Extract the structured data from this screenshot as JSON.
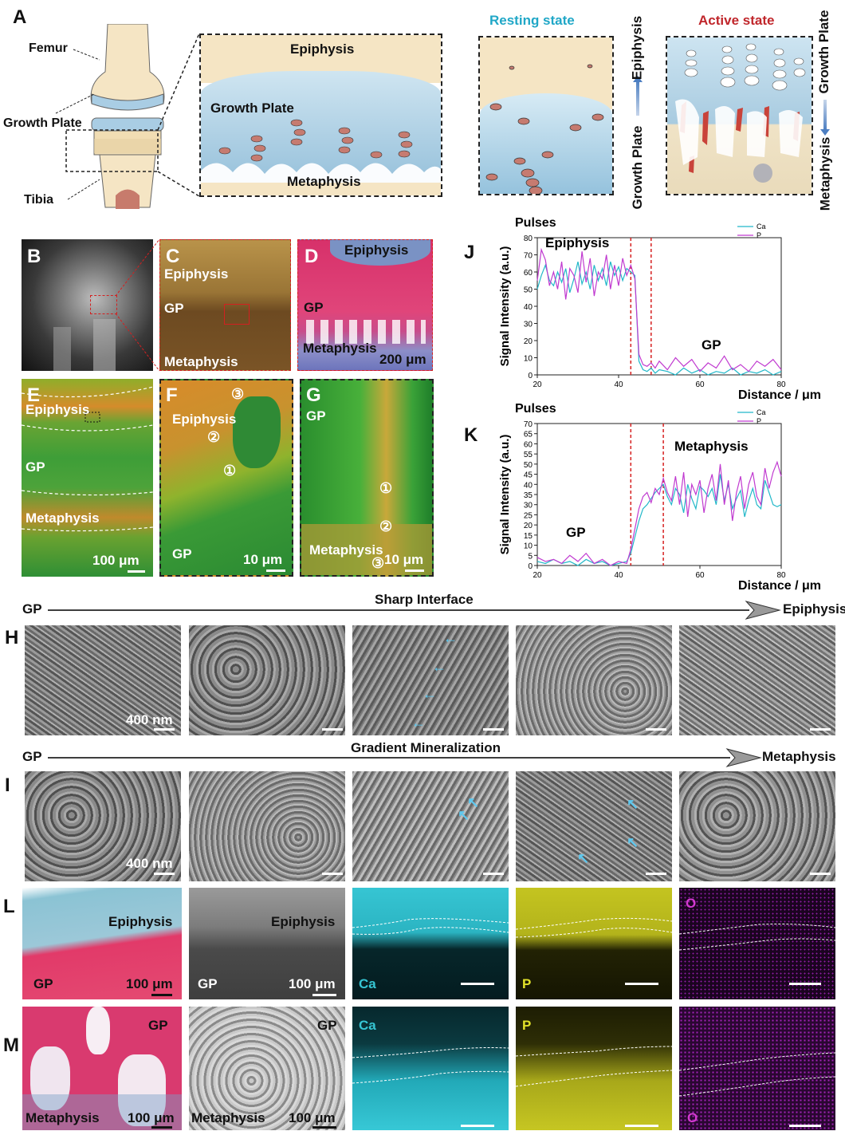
{
  "panels": {
    "A": "A",
    "B": "B",
    "C": "C",
    "D": "D",
    "E": "E",
    "F": "F",
    "G": "G",
    "H": "H",
    "I": "I",
    "J": "J",
    "K": "K",
    "L": "L",
    "M": "M"
  },
  "schematic": {
    "femur": "Femur",
    "growth_plate": "Growth Plate",
    "tibia": "Tibia",
    "zoom_epiphysis": "Epiphysis",
    "zoom_growth_plate": "Growth Plate",
    "zoom_metaphysis": "Metaphysis",
    "resting_title": "Resting state",
    "active_title": "Active state",
    "resting_top": "Epiphysis",
    "resting_bottom": "Growth Plate",
    "active_top": "Growth Plate",
    "active_bottom": "Metaphysis"
  },
  "micro": {
    "C_epi": "Epiphysis",
    "C_gp": "GP",
    "C_meta": "Metaphysis",
    "D_epi": "Epiphysis",
    "D_gp": "GP",
    "D_meta": "Metaphysis",
    "D_scale": "200 μm",
    "E_epi": "Epiphysis",
    "E_gp": "GP",
    "E_meta": "Metaphysis",
    "E_scale": "100 μm",
    "F_epi": "Epiphysis",
    "F_gp": "GP",
    "F_scale": "10 μm",
    "G_gp": "GP",
    "G_meta": "Metaphysis",
    "G_scale": "10 μm",
    "c1": "①",
    "c2": "②",
    "c3": "③"
  },
  "sem_rows": {
    "H_left": "GP",
    "H_title": "Sharp Interface",
    "H_right": "Epiphysis",
    "H_scale": "400 nm",
    "I_left": "GP",
    "I_title": "Gradient Mineralization",
    "I_right": "Metaphysis",
    "I_scale": "400 nm"
  },
  "maps": {
    "L_epi1": "Epiphysis",
    "L_gp1": "GP",
    "L_scale1": "100 μm",
    "L_epi2": "Epiphysis",
    "L_gp2": "GP",
    "L_scale2": "100 μm",
    "Ca": "Ca",
    "P": "P",
    "O": "O",
    "M_gp1": "GP",
    "M_meta1": "Metaphysis",
    "M_scale1": "100 μm",
    "M_gp2": "GP",
    "M_meta2": "Metaphysis",
    "M_scale2": "100 μm"
  },
  "colors": {
    "Ca": "#22b8c9",
    "P": "#c03ad0",
    "guide": "#d62020"
  },
  "chart_data": [
    {
      "type": "line",
      "panel": "J",
      "top_label": "Pulses",
      "xlabel": "Distance / μm",
      "ylabel": "Signal Intensity (a.u.)",
      "xlim": [
        20,
        80
      ],
      "ylim": [
        0,
        80
      ],
      "xticks": [
        20,
        40,
        60,
        80
      ],
      "yticks": [
        0,
        10,
        20,
        30,
        40,
        50,
        60,
        70,
        80
      ],
      "region_labels": [
        "Epiphysis",
        "GP"
      ],
      "guides_x": [
        43,
        48
      ],
      "legend": "top-right",
      "x": [
        20,
        21,
        22,
        23,
        24,
        25,
        26,
        27,
        28,
        29,
        30,
        31,
        32,
        33,
        34,
        35,
        36,
        37,
        38,
        39,
        40,
        41,
        42,
        43,
        44,
        45,
        46,
        47,
        48,
        49,
        50,
        52,
        54,
        56,
        58,
        60,
        62,
        64,
        66,
        68,
        70,
        72,
        74,
        76,
        78,
        80
      ],
      "series": [
        {
          "name": "Ca",
          "values": [
            50,
            58,
            64,
            55,
            52,
            60,
            54,
            62,
            48,
            56,
            66,
            53,
            60,
            50,
            64,
            55,
            62,
            52,
            66,
            58,
            63,
            55,
            62,
            60,
            58,
            8,
            3,
            2,
            4,
            1,
            3,
            2,
            0,
            4,
            1,
            3,
            0,
            2,
            1,
            4,
            0,
            2,
            1,
            3,
            0,
            2
          ]
        },
        {
          "name": "P",
          "values": [
            55,
            73,
            67,
            52,
            60,
            50,
            66,
            44,
            62,
            58,
            48,
            72,
            54,
            68,
            46,
            60,
            56,
            70,
            50,
            64,
            52,
            68,
            58,
            64,
            56,
            12,
            6,
            5,
            7,
            4,
            8,
            3,
            10,
            5,
            9,
            2,
            7,
            4,
            11,
            3,
            6,
            2,
            8,
            5,
            9,
            3
          ]
        }
      ]
    },
    {
      "type": "line",
      "panel": "K",
      "top_label": "Pulses",
      "xlabel": "Distance / μm",
      "ylabel": "Signal Intensity (a.u.)",
      "xlim": [
        20,
        80
      ],
      "ylim": [
        0,
        70
      ],
      "xticks": [
        20,
        40,
        60,
        80
      ],
      "yticks": [
        0,
        5,
        10,
        15,
        20,
        25,
        30,
        35,
        40,
        45,
        50,
        55,
        60,
        65,
        70
      ],
      "region_labels": [
        "GP",
        "Metaphysis"
      ],
      "guides_x": [
        43,
        51
      ],
      "legend": "top-right",
      "x": [
        20,
        22,
        24,
        26,
        28,
        30,
        32,
        34,
        36,
        38,
        40,
        42,
        43,
        44,
        45,
        46,
        47,
        48,
        49,
        50,
        51,
        52,
        53,
        54,
        55,
        56,
        57,
        58,
        59,
        60,
        61,
        62,
        63,
        64,
        65,
        66,
        67,
        68,
        69,
        70,
        71,
        72,
        73,
        74,
        75,
        76,
        77,
        78,
        79,
        80
      ],
      "series": [
        {
          "name": "Ca",
          "values": [
            2,
            1,
            3,
            1,
            2,
            0,
            3,
            1,
            2,
            0,
            1,
            2,
            6,
            14,
            22,
            28,
            30,
            33,
            36,
            38,
            40,
            34,
            30,
            38,
            35,
            26,
            40,
            33,
            28,
            39,
            37,
            34,
            38,
            30,
            45,
            32,
            40,
            28,
            33,
            37,
            24,
            32,
            38,
            30,
            28,
            42,
            36,
            30,
            29,
            30
          ]
        },
        {
          "name": "P",
          "values": [
            4,
            2,
            3,
            1,
            5,
            2,
            6,
            1,
            3,
            0,
            2,
            1,
            8,
            18,
            28,
            34,
            36,
            31,
            38,
            35,
            43,
            36,
            32,
            44,
            30,
            46,
            24,
            40,
            35,
            42,
            26,
            38,
            45,
            32,
            50,
            30,
            42,
            22,
            36,
            44,
            28,
            40,
            46,
            34,
            30,
            48,
            38,
            46,
            51,
            44
          ]
        }
      ]
    }
  ]
}
